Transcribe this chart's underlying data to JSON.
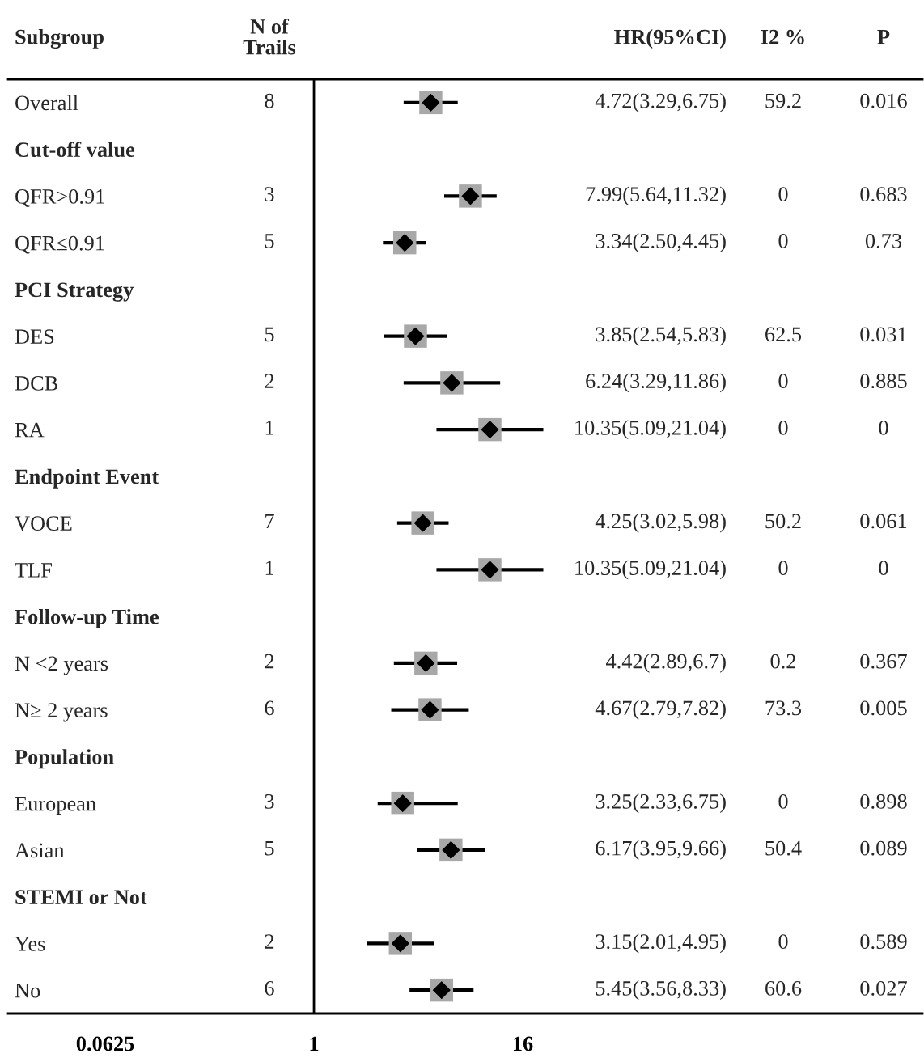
{
  "chart_data": {
    "type": "scatter",
    "orientation": "horizontal",
    "ylabel": "Subgroup",
    "categories": [
      "Overall",
      "Cut-off value",
      "QFR>0.91",
      "QFR≤0.91",
      "PCI Strategy",
      "DES",
      "DCB",
      "RA",
      "Endpoint Event",
      "VOCE",
      "TLF",
      "Follow-up Time",
      "N <2 years",
      "N≥ 2 years",
      "Population",
      "European",
      "Asian",
      "STEMI or Not",
      "Yes",
      "No"
    ],
    "values": [
      4.72,
      null,
      7.99,
      3.34,
      null,
      3.85,
      6.24,
      10.35,
      null,
      4.25,
      10.35,
      null,
      4.42,
      4.67,
      null,
      3.25,
      6.17,
      null,
      3.15,
      5.45
    ],
    "errors": [
      [
        3.29,
        6.75
      ],
      null,
      [
        5.64,
        11.32
      ],
      [
        2.5,
        4.45
      ],
      null,
      [
        2.54,
        5.83
      ],
      [
        3.29,
        11.86
      ],
      [
        5.09,
        21.04
      ],
      null,
      [
        3.02,
        5.98
      ],
      [
        5.09,
        21.04
      ],
      null,
      [
        2.89,
        6.7
      ],
      [
        2.79,
        7.82
      ],
      null,
      [
        2.33,
        6.75
      ],
      [
        3.95,
        9.66
      ],
      null,
      [
        2.01,
        4.95
      ],
      [
        3.56,
        8.33
      ]
    ],
    "color": "#000000",
    "marker": "diamond",
    "log": "x",
    "xlim": [
      0.0172,
      3234
    ],
    "xticks": [
      0.0625,
      1,
      16
    ],
    "ref_lines": [
      {
        "axis": "x",
        "value": 1,
        "color": "#000000"
      }
    ],
    "annotations": [
      "N of\nTrails",
      "8",
      "3",
      "5",
      "5",
      "2",
      "1",
      "7",
      "1",
      "2",
      "6",
      "3",
      "5",
      "2",
      "6",
      "HR(95%CI)",
      "4.72(3.29,6.75)",
      "7.99(5.64,11.32)",
      "3.34(2.50,4.45)",
      "3.85(2.54,5.83)",
      "6.24(3.29,11.86)",
      "10.35(5.09,21.04)",
      "4.25(3.02,5.98)",
      "10.35(5.09,21.04)",
      "4.42(2.89,6.7)",
      "4.67(2.79,7.82)",
      "3.25(2.33,6.75)",
      "6.17(3.95,9.66)",
      "3.15(2.01,4.95)",
      "5.45(3.56,8.33)",
      "I2 %",
      "59.2",
      "0",
      "0",
      "62.5",
      "0",
      "0",
      "50.2",
      "0",
      "0.2",
      "73.3",
      "0",
      "50.4",
      "0",
      "60.6",
      "P",
      "0.016",
      "0.683",
      "0.73",
      "0.031",
      "0.885",
      "0",
      "0.061",
      "0",
      "0.367",
      "0.005",
      "0.898",
      "0.089",
      "0.589",
      "0.027"
    ]
  }
}
